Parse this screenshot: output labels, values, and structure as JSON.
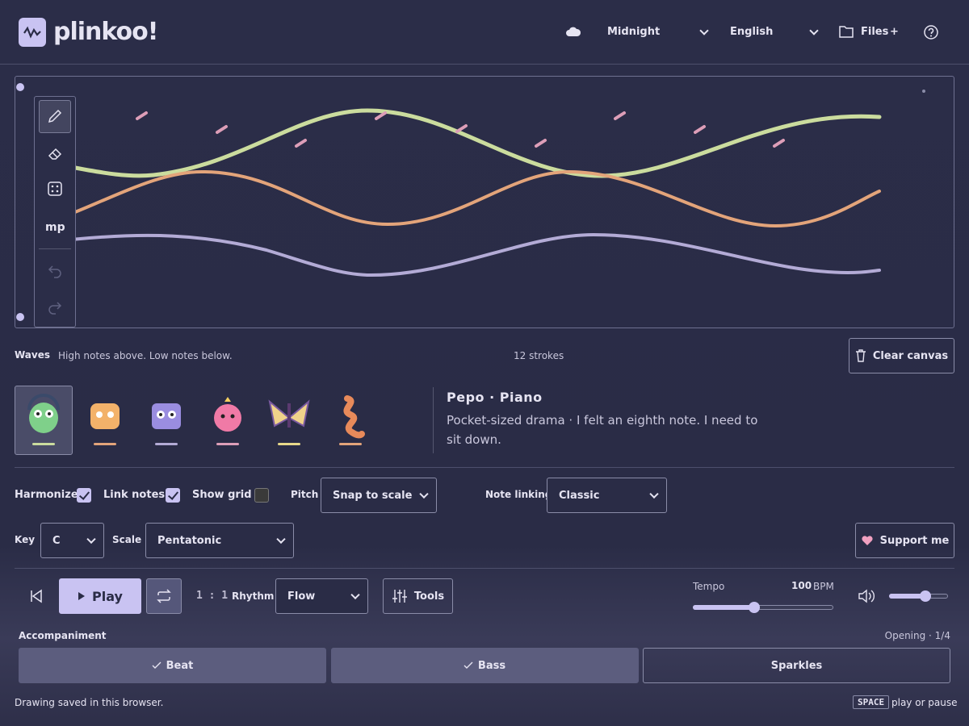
{
  "header": {
    "logo": "plinkoo!",
    "theme": "Midnight",
    "language": "English",
    "files": "Files",
    "files_plus": "+"
  },
  "toolbar": {
    "dynamics": "mp"
  },
  "canvas_bar": {
    "label": "Waves",
    "hint": "High notes above. Low notes below.",
    "strokes": "12 strokes",
    "clear": "Clear canvas"
  },
  "voice": {
    "name": "Pepo · Piano",
    "description": "Pocket-sized drama · I felt an eighth note. I need to sit down."
  },
  "options": {
    "harmonize": {
      "label": "Harmonize",
      "checked": true
    },
    "link_notes": {
      "label": "Link notes",
      "checked": true
    },
    "show_grid": {
      "label": "Show grid",
      "checked": false
    },
    "pitch_label": "Pitch",
    "pitch": "Snap to scale",
    "note_linking_label": "Note linking",
    "note_linking": "Classic",
    "key_label": "Key",
    "key": "C",
    "scale_label": "Scale",
    "scale": "Pentatonic",
    "support": "Support me"
  },
  "transport": {
    "play": "Play",
    "ratio": "1 : 1",
    "rhythm_label": "Rhythm",
    "rhythm": "Flow",
    "tools": "Tools",
    "tempo_label": "Tempo",
    "tempo": "100",
    "tempo_unit": "BPM"
  },
  "accompaniment": {
    "label": "Accompaniment",
    "section": "Opening · 1/4",
    "buttons": [
      {
        "label": "Beat",
        "on": true
      },
      {
        "label": "Bass",
        "on": true
      },
      {
        "label": "Sparkles",
        "on": false
      }
    ]
  },
  "footer": {
    "status": "Drawing saved in this browser.",
    "key": "SPACE",
    "key_hint": "play or pause"
  }
}
